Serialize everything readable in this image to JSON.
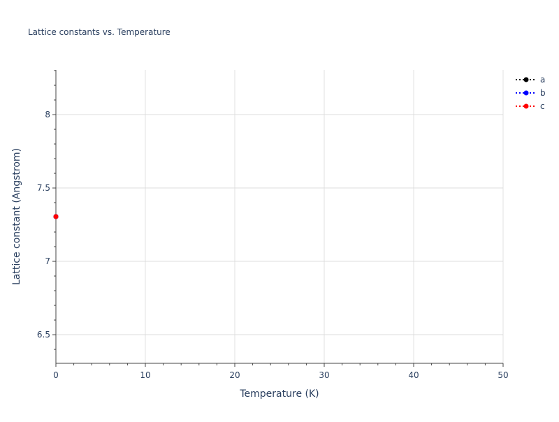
{
  "chart_data": {
    "type": "scatter",
    "title": "Lattice constants vs. Temperature",
    "xlabel": "Temperature (K)",
    "ylabel": "Lattice constant (Angstrom)",
    "xlim": [
      0,
      50
    ],
    "ylim": [
      6.305,
      8.305
    ],
    "xticks": [
      0,
      10,
      20,
      30,
      40,
      50
    ],
    "xtick_labels": [
      "0",
      "10",
      "20",
      "30",
      "40",
      "50"
    ],
    "yticks": [
      6.5,
      7,
      7.5,
      8
    ],
    "ytick_labels": [
      "6.5",
      "7",
      "7.5",
      "8"
    ],
    "grid": true,
    "legend_position": "top-right",
    "series": [
      {
        "name": "a",
        "color": "#000000",
        "mode": "lines+markers",
        "line_dash": "dot",
        "x": [
          0
        ],
        "y": [
          7.305
        ]
      },
      {
        "name": "b",
        "color": "#0000ff",
        "mode": "lines+markers",
        "line_dash": "dot",
        "x": [
          0
        ],
        "y": [
          7.305
        ]
      },
      {
        "name": "c",
        "color": "#ff0000",
        "mode": "lines+markers",
        "line_dash": "dot",
        "x": [
          0
        ],
        "y": [
          7.305
        ]
      }
    ]
  }
}
